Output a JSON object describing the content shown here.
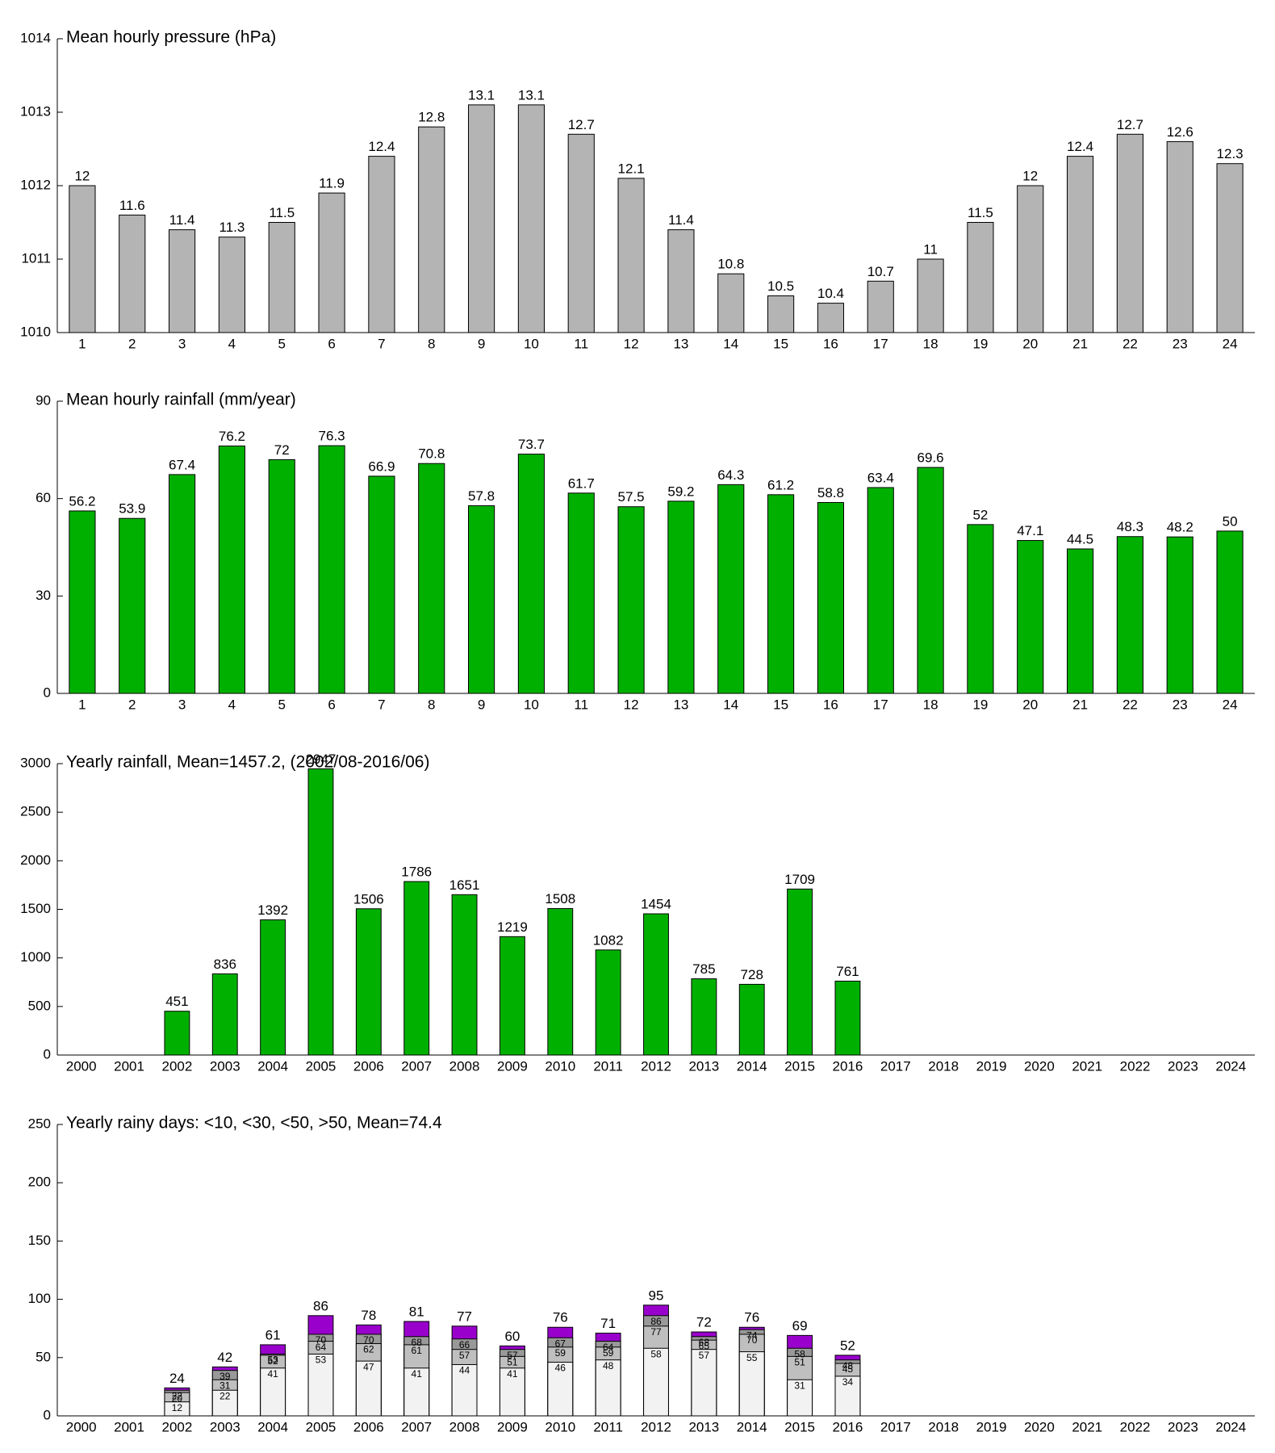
{
  "chart_data": [
    {
      "type": "bar",
      "title": "Mean hourly pressure (hPa)",
      "color": "#b4b4b4",
      "categories": [
        "1",
        "2",
        "3",
        "4",
        "5",
        "6",
        "7",
        "8",
        "9",
        "10",
        "11",
        "12",
        "13",
        "14",
        "15",
        "16",
        "17",
        "18",
        "19",
        "20",
        "21",
        "22",
        "23",
        "24"
      ],
      "values": [
        1012.0,
        1011.6,
        1011.4,
        1011.3,
        1011.5,
        1011.9,
        1012.4,
        1012.8,
        1013.1,
        1013.1,
        1012.7,
        1012.1,
        1011.4,
        1010.8,
        1010.5,
        1010.4,
        1010.7,
        1011.0,
        1011.5,
        1012.0,
        1012.4,
        1012.7,
        1012.6,
        1012.3
      ],
      "value_labels": [
        "12",
        "11.6",
        "11.4",
        "11.3",
        "11.5",
        "11.9",
        "12.4",
        "12.8",
        "13.1",
        "13.1",
        "12.7",
        "12.1",
        "11.4",
        "10.8",
        "10.5",
        "10.4",
        "10.7",
        "11",
        "11.5",
        "12",
        "12.4",
        "12.7",
        "12.6",
        "12.3"
      ],
      "ylim": [
        1010,
        1014
      ],
      "yticks": [
        1010,
        1011,
        1012,
        1013,
        1014
      ]
    },
    {
      "type": "bar",
      "title": "Mean hourly rainfall (mm/year)",
      "color": "#00b000",
      "categories": [
        "1",
        "2",
        "3",
        "4",
        "5",
        "6",
        "7",
        "8",
        "9",
        "10",
        "11",
        "12",
        "13",
        "14",
        "15",
        "16",
        "17",
        "18",
        "19",
        "20",
        "21",
        "22",
        "23",
        "24"
      ],
      "values": [
        56.2,
        53.9,
        67.4,
        76.2,
        72,
        76.3,
        66.9,
        70.8,
        57.8,
        73.7,
        61.7,
        57.5,
        59.2,
        64.3,
        61.2,
        58.8,
        63.4,
        69.6,
        52,
        47.1,
        44.5,
        48.3,
        48.2,
        50
      ],
      "ylim": [
        0,
        90
      ],
      "yticks": [
        0,
        30,
        60,
        90
      ]
    },
    {
      "type": "bar",
      "title": "Yearly rainfall, Mean=1457.2, (2002/08-2016/06)",
      "color": "#00b000",
      "categories": [
        "2000",
        "2001",
        "2002",
        "2003",
        "2004",
        "2005",
        "2006",
        "2007",
        "2008",
        "2009",
        "2010",
        "2011",
        "2012",
        "2013",
        "2014",
        "2015",
        "2016",
        "2017",
        "2018",
        "2019",
        "2020",
        "2021",
        "2022",
        "2023",
        "2024"
      ],
      "values": [
        null,
        null,
        451,
        836,
        1392,
        2947,
        1506,
        1786,
        1651,
        1219,
        1508,
        1082,
        1454,
        785,
        728,
        1709,
        761,
        null,
        null,
        null,
        null,
        null,
        null,
        null,
        null
      ],
      "ylim": [
        0,
        3000
      ],
      "yticks": [
        0,
        500,
        1000,
        1500,
        2000,
        2500,
        3000
      ]
    },
    {
      "type": "overlap",
      "title": "Yearly rainy days: <10, <30, <50, >50, Mean=74.4",
      "categories": [
        "2000",
        "2001",
        "2002",
        "2003",
        "2004",
        "2005",
        "2006",
        "2007",
        "2008",
        "2009",
        "2010",
        "2011",
        "2012",
        "2013",
        "2014",
        "2015",
        "2016",
        "2017",
        "2018",
        "2019",
        "2020",
        "2021",
        "2022",
        "2023",
        "2024"
      ],
      "series": [
        {
          "color": "#f2f2f2",
          "values": [
            null,
            null,
            12,
            22,
            41,
            53,
            47,
            41,
            44,
            41,
            46,
            48,
            58,
            57,
            55,
            31,
            34,
            null,
            null,
            null,
            null,
            null,
            null,
            null,
            null
          ]
        },
        {
          "color": "#bfbfbf",
          "values": [
            null,
            null,
            20,
            31,
            52,
            64,
            62,
            61,
            57,
            51,
            59,
            59,
            77,
            65,
            70,
            51,
            45,
            null,
            null,
            null,
            null,
            null,
            null,
            null,
            null
          ]
        },
        {
          "color": "#999999",
          "values": [
            null,
            null,
            22,
            39,
            53,
            70,
            70,
            68,
            66,
            57,
            67,
            64,
            86,
            68,
            74,
            58,
            48,
            null,
            null,
            null,
            null,
            null,
            null,
            null,
            null
          ]
        },
        {
          "color": "#9900cc",
          "values": [
            null,
            null,
            24,
            42,
            61,
            86,
            78,
            81,
            77,
            60,
            76,
            71,
            95,
            72,
            76,
            69,
            52,
            null,
            null,
            null,
            null,
            null,
            null,
            null,
            null
          ]
        }
      ],
      "ylim": [
        0,
        250
      ],
      "yticks": [
        0,
        50,
        100,
        150,
        200,
        250
      ]
    }
  ]
}
